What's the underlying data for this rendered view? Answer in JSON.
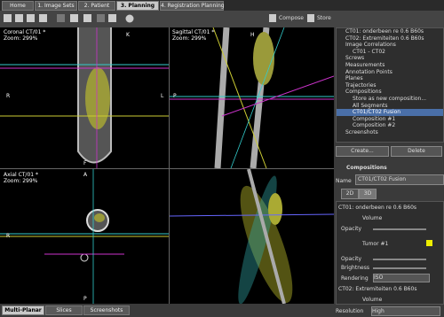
{
  "tabs": [
    "Home",
    "1. Image Sets",
    "2. Patient",
    "3. Planning",
    "4. Registration Planning"
  ],
  "toolbar": {
    "compose": "Compose",
    "store": "Store"
  },
  "views": {
    "coronal": {
      "title": "Coronal CT/01 *",
      "zoom": "Zoom: 299%",
      "top": "K",
      "left": "R",
      "right": "L",
      "bottom": "F"
    },
    "sagittal": {
      "title": "Sagittal CT/01 *",
      "zoom": "Zoom: 299%",
      "top": "H",
      "left": "P"
    },
    "axial": {
      "title": "Axial CT/01 *",
      "zoom": "Zoom: 299%",
      "top": "A",
      "left": "R",
      "bottom": "P"
    }
  },
  "bottom_tabs": [
    "Multi-Planar",
    "Slices",
    "Screenshots"
  ],
  "tree": [
    "CT01: onderbeen re 0.6 B60s",
    "CT02: Extremiteiten 0.6 B60s",
    "Image Correlations",
    "CT01 - CT02",
    "Screws",
    "Measurements",
    "Annotation Points",
    "Planes",
    "Trajectories",
    "Compositions",
    "Store as new composition...",
    "All Segments",
    "CT01/CT02 Fusion",
    "Composition #1",
    "Composition #2",
    "Screenshots"
  ],
  "buttons": {
    "create": "Create...",
    "delete": "Delete"
  },
  "panel": {
    "header": "Compositions",
    "name_label": "Name",
    "name_value": "CT01/CT02 Fusion",
    "tab2d": "2D",
    "tab3d": "3D",
    "layer1": "CT01: onderbeen re 0.6 B60s",
    "volume": "Volume",
    "opacity": "Opacity",
    "tumor": "Tumor #1",
    "opacity2": "Opacity",
    "brightness": "Brightness",
    "rendering": "Rendering",
    "rendering_value": "ISO",
    "layer2": "CT02: Extremiteiten 0.6 B60s",
    "volume2": "Volume",
    "resolution": "Resolution",
    "resolution_value": "High"
  }
}
